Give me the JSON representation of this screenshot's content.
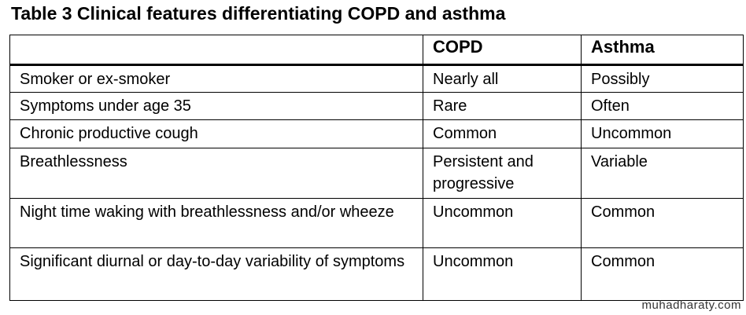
{
  "title": "Table 3 Clinical features differentiating COPD and asthma",
  "table": {
    "columns": [
      "COPD",
      "Asthma"
    ],
    "rows": [
      [
        "Smoker or ex-smoker",
        "Nearly all",
        "Possibly"
      ],
      [
        "Symptoms under age 35",
        "Rare",
        "Often"
      ],
      [
        "Chronic productive cough",
        "Common",
        "Uncommon"
      ],
      [
        "Breathlessness",
        "Persistent and progressive",
        "Variable"
      ],
      [
        "Night time waking with breathlessness and/or wheeze",
        "Uncommon",
        "Common"
      ],
      [
        "Significant diurnal or day-to-day variability of symptoms",
        "Uncommon",
        "Common"
      ]
    ]
  },
  "watermark": "muhadharaty.com"
}
